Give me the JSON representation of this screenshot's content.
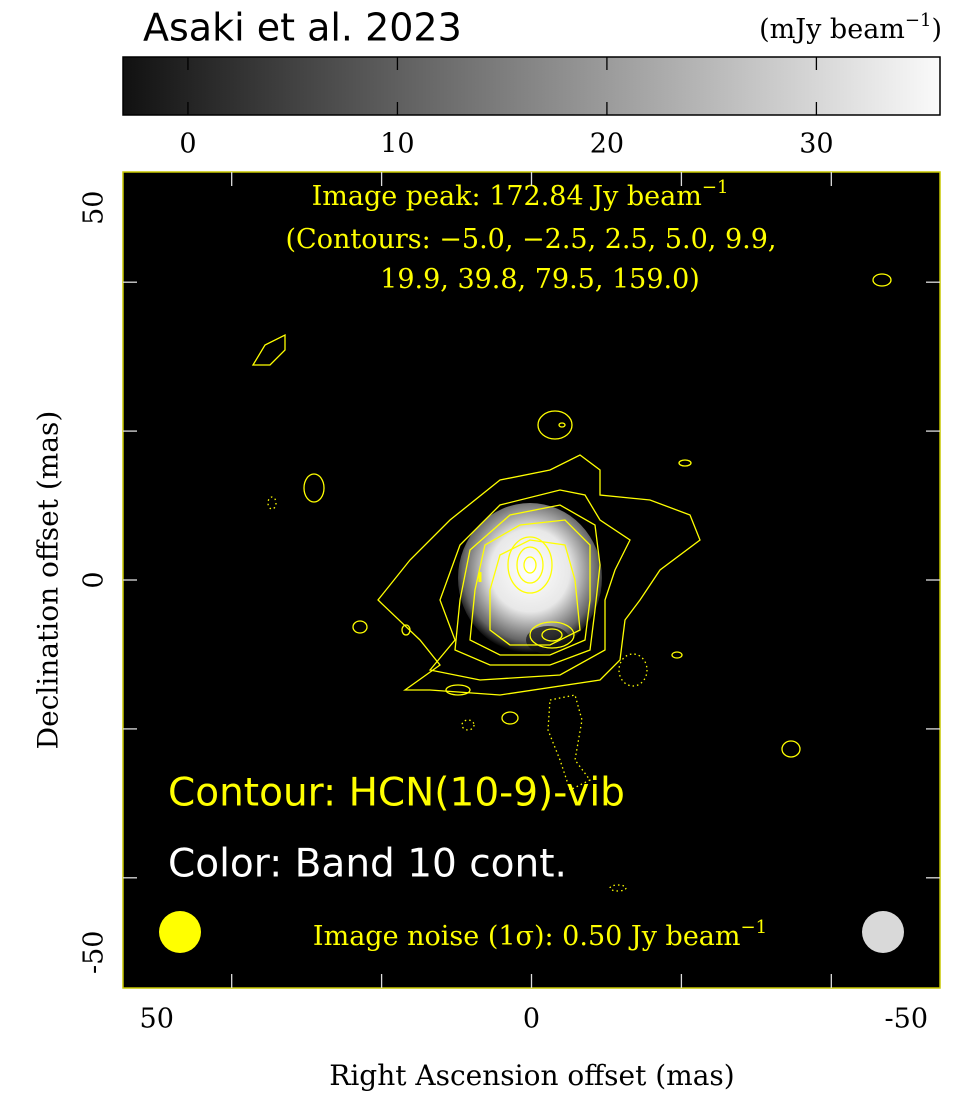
{
  "chart_data": {
    "type": "image",
    "title": "Asaki et al. 2023",
    "colorbar": {
      "label": {
        "text": "(mJy beam",
        "sup": "−1",
        "end": ")"
      },
      "clim": [
        -3.1,
        35.9
      ],
      "ticks": [
        0,
        10,
        20,
        30
      ]
    },
    "xlabel": "Right Ascension offset (mas)",
    "ylabel": "Declination offset (mas)",
    "xlim": [
      54.5,
      -54.5
    ],
    "ylim": [
      -54.8,
      54.8
    ],
    "xticks": [
      50,
      0,
      -50
    ],
    "yticks": [
      50,
      0,
      -50
    ],
    "xminorticks": [
      40,
      20,
      0,
      -20,
      -40
    ],
    "yminorticks": [
      40,
      20,
      0,
      -20,
      -40
    ],
    "annotations": {
      "peak": {
        "text": "Image peak:  172.84 Jy beam",
        "sup": "−1"
      },
      "contours_line1": "(Contours: −5.0, −2.5, 2.5, 5.0, 9.9,",
      "contours_line2": "19.9, 39.8, 79.5, 159.0)",
      "contour_label": "Contour: HCN(10-9)-vib",
      "color_label": "Color: Band 10 cont.",
      "noise": {
        "text": "Image noise (1σ): 0.50 Jy beam",
        "sup": "−1"
      }
    }
  }
}
